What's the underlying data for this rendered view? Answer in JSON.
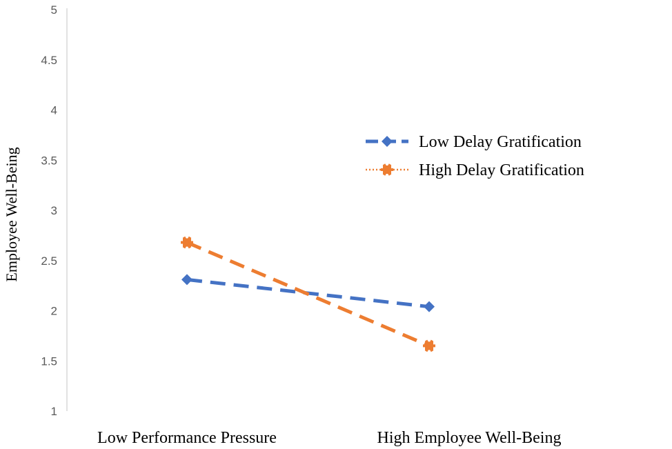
{
  "chart_data": {
    "type": "line",
    "title": "",
    "xlabel": "",
    "ylabel": "Employee Well-Being",
    "categories": [
      "Low Performance Pressure",
      "High Employee Well-Being"
    ],
    "ylim": [
      1,
      5
    ],
    "yticks": [
      "1",
      "1.5",
      "2",
      "2.5",
      "3",
      "3.5",
      "4",
      "4.5",
      "5"
    ],
    "grid": false,
    "legend_position": "right",
    "series": [
      {
        "name": "Low Delay Gratification",
        "values": [
          2.31,
          2.04
        ],
        "color": "#4472C4",
        "marker": "diamond",
        "line_style": "dashed"
      },
      {
        "name": "High Delay Gratification",
        "values": [
          2.68,
          1.65
        ],
        "color": "#ED7D31",
        "marker": "asterisk",
        "line_style": "dashed"
      }
    ]
  }
}
